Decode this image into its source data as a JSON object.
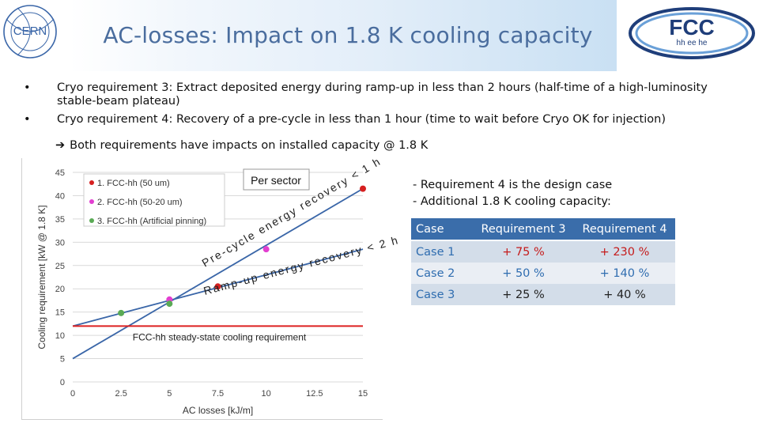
{
  "header": {
    "title": "AC-losses: Impact on 1.8 K cooling capacity",
    "cern_logo_text": "CERN",
    "fcc_logo_text": "FCC",
    "fcc_logo_sub": "hh ee he"
  },
  "bullets": [
    {
      "marker": "•",
      "text": "Cryo requirement 3: Extract deposited energy during ramp-up in less than 2 hours (half-time of a high-luminosity stable-beam plateau)"
    },
    {
      "marker": "•",
      "text": "Cryo requirement 4: Recovery of a pre-cycle in less than 1 hour (time to wait before Cryo OK for injection)"
    }
  ],
  "conclusion": "Both requirements have impacts on installed capacity @ 1.8 K",
  "chart_data": {
    "type": "line",
    "title": "",
    "xlabel": "AC losses [kJ/m]",
    "ylabel": "Cooling requirement [kW @ 1.8 K]",
    "xlim": [
      0,
      15
    ],
    "ylim": [
      0,
      45
    ],
    "xticks": [
      0,
      2.5,
      5,
      7.5,
      10,
      12.5,
      15
    ],
    "xtick_labels": [
      "0",
      "2.5",
      "5",
      "7.5",
      "10",
      "12.5",
      "15"
    ],
    "yticks": [
      0,
      5,
      10,
      15,
      20,
      25,
      30,
      35,
      40,
      45
    ],
    "ytick_labels": [
      "0",
      "5",
      "10",
      "15",
      "20",
      "25",
      "30",
      "35",
      "40",
      "45"
    ],
    "grid": true,
    "legend": {
      "placement": "top-left",
      "entries": [
        {
          "label": "1. FCC-hh (50 um)",
          "color": "#d62020"
        },
        {
          "label": "2. FCC-hh (50-20 um)",
          "color": "#e23fd0"
        },
        {
          "label": "3. FCC-hh (Artificial pinning)",
          "color": "#5aaa55"
        }
      ]
    },
    "series": [
      {
        "name": "Pre-cycle energy recovery < 1 h",
        "color": "#3a66a8",
        "x": [
          0,
          15
        ],
        "y": [
          5,
          41.5
        ]
      },
      {
        "name": "Ramp-up energy recovery < 2 h",
        "color": "#3a66a8",
        "x": [
          0,
          15
        ],
        "y": [
          12,
          28.5
        ]
      },
      {
        "name": "FCC-hh steady-state cooling requirement",
        "color": "#dd2222",
        "x": [
          0,
          15
        ],
        "y": [
          12,
          12
        ]
      }
    ],
    "points": [
      {
        "case": "1",
        "color": "#d62020",
        "x": 7.5,
        "y": 20.5
      },
      {
        "case": "1",
        "color": "#d62020",
        "x": 15,
        "y": 41.5
      },
      {
        "case": "2",
        "color": "#e23fd0",
        "x": 5,
        "y": 17.7
      },
      {
        "case": "2",
        "color": "#e23fd0",
        "x": 10,
        "y": 28.5
      },
      {
        "case": "3",
        "color": "#5aaa55",
        "x": 2.5,
        "y": 14.8
      },
      {
        "case": "3",
        "color": "#5aaa55",
        "x": 5,
        "y": 16.8
      }
    ],
    "annotations": {
      "per_sector": "Per sector",
      "precycle": "Pre-cycle energy recovery < 1 h",
      "rampup": "Ramp-up energy recovery < 2 h",
      "steady": "FCC-hh steady-state cooling requirement"
    }
  },
  "notes": [
    "-  Requirement 4 is the design case",
    "-  Additional 1.8 K cooling capacity:"
  ],
  "table": {
    "headers": [
      "Case",
      "Requirement 3",
      "Requirement 4"
    ],
    "rows": [
      {
        "case": "Case 1",
        "req3": "+ 75 %",
        "req4": "+ 230 %"
      },
      {
        "case": "Case 2",
        "req3": "+ 50 %",
        "req4": "+ 140 %"
      },
      {
        "case": "Case 3",
        "req3": "+ 25 %",
        "req4": "+ 40 %"
      }
    ]
  },
  "colors": {
    "title": "#4a6d9e",
    "accent_blue": "#3a6daa",
    "series_blue": "#3a66a8",
    "steady_red": "#dd2222"
  }
}
